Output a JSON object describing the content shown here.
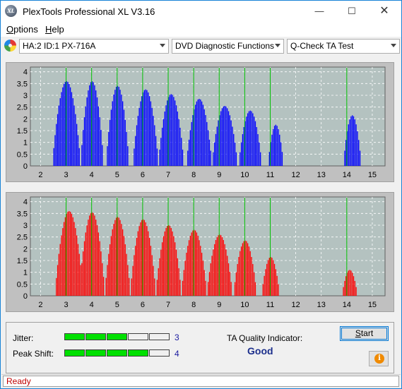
{
  "window": {
    "title": "PlexTools Professional XL V3.16",
    "icon_text": "XL"
  },
  "menu": [
    {
      "label": "Options",
      "accel": "O",
      "rest": "ptions"
    },
    {
      "label": "Help",
      "accel": "H",
      "rest": "elp"
    }
  ],
  "toolbar": {
    "drive": "HA:2 ID:1  PX-716A",
    "function": "DVD Diagnostic Functions",
    "test": "Q-Check TA Test"
  },
  "chart_data": [
    {
      "type": "bar",
      "name": "top-histogram",
      "color": "#0000ff",
      "x_ticks": [
        2,
        3,
        4,
        5,
        6,
        7,
        8,
        9,
        10,
        11,
        12,
        13,
        14,
        15
      ],
      "y_ticks": [
        "0",
        "0.5",
        "1",
        "1.5",
        "2",
        "2.5",
        "3",
        "3.5",
        "4"
      ],
      "xlim": [
        1.6,
        15.5
      ],
      "ylim": [
        0,
        4.2
      ],
      "green_lines": [
        3,
        4,
        5,
        6,
        7,
        8,
        9,
        10,
        11,
        14
      ],
      "peaks": [
        {
          "center": 3.0,
          "height": 3.6,
          "half_width": 0.55
        },
        {
          "center": 4.0,
          "height": 3.6,
          "half_width": 0.45
        },
        {
          "center": 5.0,
          "height": 3.4,
          "half_width": 0.45
        },
        {
          "center": 6.1,
          "height": 3.25,
          "half_width": 0.5
        },
        {
          "center": 7.1,
          "height": 3.05,
          "half_width": 0.5
        },
        {
          "center": 8.2,
          "height": 2.85,
          "half_width": 0.5
        },
        {
          "center": 9.2,
          "height": 2.55,
          "half_width": 0.5
        },
        {
          "center": 10.2,
          "height": 2.35,
          "half_width": 0.45
        },
        {
          "center": 11.2,
          "height": 1.75,
          "half_width": 0.3
        },
        {
          "center": 14.2,
          "height": 2.15,
          "half_width": 0.35
        }
      ]
    },
    {
      "type": "bar",
      "name": "bottom-histogram",
      "color": "#ff0000",
      "x_ticks": [
        2,
        3,
        4,
        5,
        6,
        7,
        8,
        9,
        10,
        11,
        12,
        13,
        14,
        15
      ],
      "y_ticks": [
        "0",
        "0.5",
        "1",
        "1.5",
        "2",
        "2.5",
        "3",
        "3.5",
        "4"
      ],
      "xlim": [
        1.6,
        15.5
      ],
      "ylim": [
        0,
        4.2
      ],
      "green_lines": [
        3,
        4,
        5,
        6,
        7,
        8,
        9,
        10,
        11,
        14
      ],
      "peaks": [
        {
          "center": 3.1,
          "height": 3.6,
          "half_width": 0.55
        },
        {
          "center": 4.0,
          "height": 3.55,
          "half_width": 0.5
        },
        {
          "center": 5.0,
          "height": 3.35,
          "half_width": 0.5
        },
        {
          "center": 6.0,
          "height": 3.25,
          "half_width": 0.5
        },
        {
          "center": 7.0,
          "height": 3.0,
          "half_width": 0.5
        },
        {
          "center": 8.0,
          "height": 2.8,
          "half_width": 0.5
        },
        {
          "center": 9.0,
          "height": 2.6,
          "half_width": 0.5
        },
        {
          "center": 10.0,
          "height": 2.35,
          "half_width": 0.45
        },
        {
          "center": 11.0,
          "height": 1.65,
          "half_width": 0.35
        },
        {
          "center": 14.1,
          "height": 1.1,
          "half_width": 0.3
        }
      ]
    }
  ],
  "metrics": {
    "jitter": {
      "label": "Jitter:",
      "value": "3",
      "level": 3,
      "max": 5
    },
    "peak_shift": {
      "label": "Peak Shift:",
      "value": "4",
      "level": 4,
      "max": 5
    },
    "ta_label": "TA Quality Indicator:",
    "ta_value": "Good",
    "start_label": "Start",
    "start_accel": "S",
    "start_rest": "tart"
  },
  "status": {
    "text": "Ready"
  },
  "colors": {
    "meter_on": "#00e000",
    "meter_off": "#f0f0f0",
    "chart_bg": "#b4c2c0",
    "grid": "#ffffff",
    "marker": "#00c000"
  }
}
